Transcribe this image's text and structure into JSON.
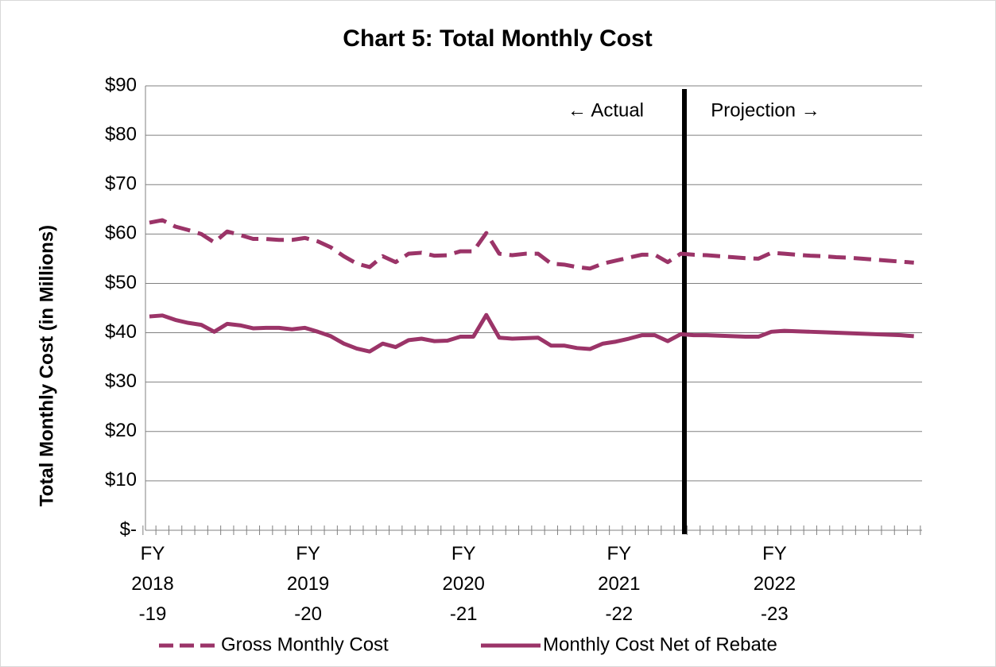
{
  "chart_data": {
    "type": "line",
    "title": "Chart 5: Total Monthly Cost",
    "y_label": "Total Monthly Cost (in Millions)",
    "annotations": [
      "← Actual",
      "Projection →"
    ],
    "categories": [
      "FY\n2018\n-19",
      null,
      null,
      null,
      null,
      null,
      null,
      null,
      null,
      null,
      null,
      null,
      "FY\n2019\n-20",
      null,
      null,
      null,
      null,
      null,
      null,
      null,
      null,
      null,
      null,
      null,
      "FY\n2020\n-21",
      null,
      null,
      null,
      null,
      null,
      null,
      null,
      null,
      null,
      null,
      null,
      "FY\n2021\n-22",
      null,
      null,
      null,
      null,
      null,
      null,
      null,
      null,
      null,
      null,
      null,
      "FY\n2022\n-23",
      null,
      null,
      null,
      null,
      null,
      null,
      null,
      null,
      null,
      null,
      null
    ],
    "series": [
      {
        "name": "Gross Monthly Cost",
        "color": "#9b3468",
        "dash": true,
        "values": [
          62.3,
          62.8,
          61.5,
          60.8,
          60,
          58.3,
          60.5,
          59.8,
          59,
          59,
          58.8,
          58.8,
          59.2,
          58.5,
          57.3,
          55.5,
          54,
          53.3,
          55.5,
          54.3,
          56,
          56.2,
          55.6,
          55.7,
          56.5,
          56.5,
          60.2,
          56,
          55.7,
          56,
          56,
          54,
          53.8,
          53.3,
          53,
          54,
          54.6,
          55.2,
          55.8,
          55.8,
          54.3,
          56,
          55.8,
          55.7,
          55.5,
          55.3,
          55.1,
          55,
          56.2,
          56,
          55.8,
          55.6,
          55.5,
          55.3,
          55.2,
          55,
          54.8,
          54.6,
          54.4,
          54.2
        ]
      },
      {
        "name": "Monthly Cost Net of Rebate",
        "color": "#9b3468",
        "dash": false,
        "values": [
          43.3,
          43.5,
          42.6,
          42,
          41.6,
          40.2,
          41.8,
          41.5,
          40.9,
          41,
          41,
          40.7,
          41,
          40.2,
          39.3,
          37.8,
          36.8,
          36.2,
          37.8,
          37.1,
          38.5,
          38.8,
          38.3,
          38.4,
          39.2,
          39.2,
          43.6,
          39,
          38.8,
          38.9,
          39,
          37.4,
          37.4,
          36.9,
          36.7,
          37.8,
          38.2,
          38.8,
          39.5,
          39.5,
          38.3,
          39.7,
          39.5,
          39.5,
          39.4,
          39.3,
          39.2,
          39.2,
          40.2,
          40.4,
          40.3,
          40.2,
          40.1,
          40,
          39.9,
          39.8,
          39.7,
          39.6,
          39.5,
          39.3
        ]
      }
    ],
    "ylim": [
      0,
      90
    ],
    "yticks": [
      {
        "value": 0,
        "label": "$-"
      },
      {
        "value": 10,
        "label": "$10"
      },
      {
        "value": 20,
        "label": "$20"
      },
      {
        "value": 30,
        "label": "$30"
      },
      {
        "value": 40,
        "label": "$40"
      },
      {
        "value": 50,
        "label": "$50"
      },
      {
        "value": 60,
        "label": "$60"
      },
      {
        "value": 70,
        "label": "$70"
      },
      {
        "value": 80,
        "label": "$80"
      },
      {
        "value": 90,
        "label": "$90"
      }
    ],
    "grid": true,
    "legend": "bottom"
  }
}
